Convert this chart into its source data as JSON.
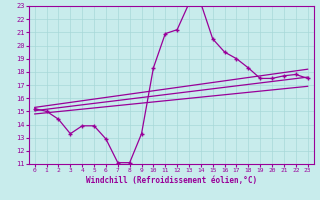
{
  "xlabel": "Windchill (Refroidissement éolien,°C)",
  "bg_color": "#c8ecec",
  "grid_color": "#a8d8d8",
  "line_color": "#990099",
  "xlim": [
    -0.5,
    23.5
  ],
  "ylim": [
    11,
    23
  ],
  "xticks": [
    0,
    1,
    2,
    3,
    4,
    5,
    6,
    7,
    8,
    9,
    10,
    11,
    12,
    13,
    14,
    15,
    16,
    17,
    18,
    19,
    20,
    21,
    22,
    23
  ],
  "yticks": [
    11,
    12,
    13,
    14,
    15,
    16,
    17,
    18,
    19,
    20,
    21,
    22,
    23
  ],
  "series1_x": [
    0,
    1,
    2,
    3,
    4,
    5,
    6,
    7,
    8,
    9,
    10,
    11,
    12,
    13,
    14,
    15,
    16,
    17,
    18,
    19,
    20,
    21,
    22,
    23
  ],
  "series1_y": [
    15.2,
    15.0,
    14.4,
    13.3,
    13.9,
    13.9,
    12.9,
    11.1,
    11.1,
    13.3,
    18.3,
    20.9,
    21.2,
    23.2,
    23.2,
    20.5,
    19.5,
    19.0,
    18.3,
    17.5,
    17.5,
    17.7,
    17.8,
    17.5
  ],
  "series2_x": [
    0,
    23
  ],
  "series2_y": [
    15.3,
    18.2
  ],
  "series3_x": [
    0,
    23
  ],
  "series3_y": [
    15.05,
    17.6
  ],
  "series4_x": [
    0,
    23
  ],
  "series4_y": [
    14.8,
    16.9
  ]
}
